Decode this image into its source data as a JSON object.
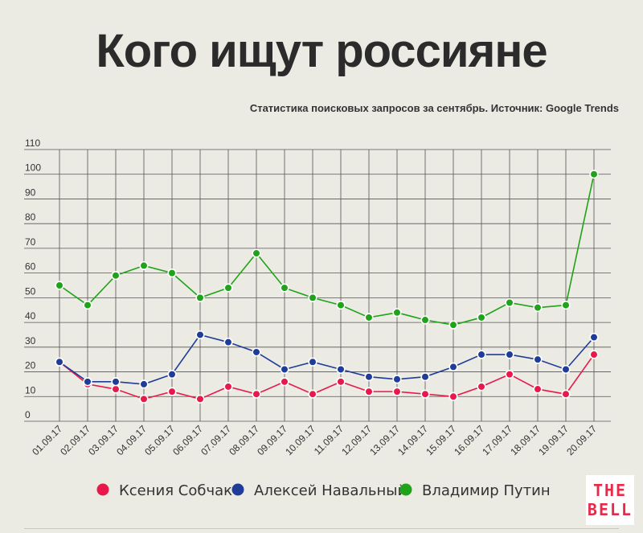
{
  "header": {
    "title": "Кого ищут россияне",
    "subtitle": "Статистика поисковых запросов за сентябрь. Источник: Google Trends"
  },
  "logo": {
    "line1": "THE",
    "line2": "BELL"
  },
  "chart_data": {
    "type": "line",
    "title": "Кого ищут россияне",
    "subtitle": "Статистика поисковых запросов за сентябрь. Источник: Google Trends",
    "xlabel": "",
    "ylabel": "",
    "ylim": [
      0,
      110
    ],
    "yticks": [
      0,
      10,
      20,
      30,
      40,
      50,
      60,
      70,
      80,
      90,
      100,
      110
    ],
    "grid": true,
    "legend_position": "bottom",
    "categories": [
      "01.09.17",
      "02.09.17",
      "03.09.17",
      "04.09.17",
      "05.09.17",
      "06.09.17",
      "07.09.17",
      "08.09.17",
      "09.09.17",
      "10.09.17",
      "11.09.17",
      "12.09.17",
      "13.09.17",
      "14.09.17",
      "15.09.17",
      "16.09.17",
      "17.09.17",
      "18.09.17",
      "19.09.17",
      "20.09.17"
    ],
    "series": [
      {
        "name": "Ксения Собчак",
        "color": "#e8194a",
        "values": [
          24,
          15,
          13,
          9,
          12,
          9,
          14,
          11,
          16,
          11,
          16,
          12,
          12,
          11,
          10,
          14,
          19,
          13,
          11,
          27
        ]
      },
      {
        "name": "Алексей Навальный",
        "color": "#1f3c99",
        "values": [
          24,
          16,
          16,
          15,
          19,
          35,
          32,
          28,
          21,
          24,
          21,
          18,
          17,
          18,
          22,
          27,
          27,
          25,
          21,
          34
        ]
      },
      {
        "name": "Владимир Путин",
        "color": "#1fa319",
        "values": [
          55,
          47,
          59,
          63,
          60,
          50,
          54,
          68,
          54,
          50,
          47,
          42,
          44,
          41,
          39,
          42,
          48,
          46,
          47,
          100
        ]
      }
    ]
  }
}
